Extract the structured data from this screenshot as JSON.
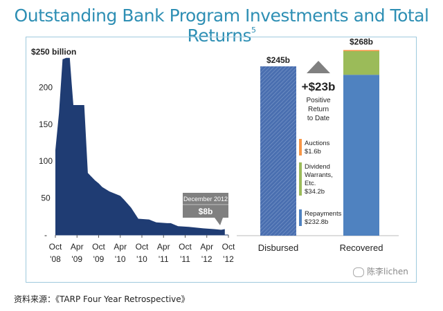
{
  "title": "Outstanding Bank Program Investments and Total Returns",
  "title_footnote": "5",
  "chart_data": [
    {
      "type": "area",
      "title": "",
      "ylabel": "$250 billion",
      "ylim": [
        0,
        250
      ],
      "y_ticks": [
        "250",
        "200",
        "150",
        "100",
        "50",
        "-"
      ],
      "x_ticks": [
        {
          "top": "Oct",
          "bottom": "'08"
        },
        {
          "top": "Apr",
          "bottom": "'09"
        },
        {
          "top": "Oct",
          "bottom": "'09"
        },
        {
          "top": "Apr",
          "bottom": "'10"
        },
        {
          "top": "Oct",
          "bottom": "'10"
        },
        {
          "top": "Apr",
          "bottom": "'11"
        },
        {
          "top": "Oct",
          "bottom": "'11"
        },
        {
          "top": "Apr",
          "bottom": "'12"
        },
        {
          "top": "Oct",
          "bottom": "'12"
        }
      ],
      "x_range": [
        0,
        48
      ],
      "points": [
        [
          0,
          115
        ],
        [
          1,
          165
        ],
        [
          2,
          238
        ],
        [
          3,
          240
        ],
        [
          4,
          240
        ],
        [
          4.5,
          207
        ],
        [
          5,
          176
        ],
        [
          8,
          176
        ],
        [
          9,
          84
        ],
        [
          11,
          74
        ],
        [
          12,
          70
        ],
        [
          13,
          65
        ],
        [
          15,
          59
        ],
        [
          18,
          53
        ],
        [
          19,
          48
        ],
        [
          21,
          37
        ],
        [
          23,
          22
        ],
        [
          26,
          21
        ],
        [
          27,
          19
        ],
        [
          28,
          17
        ],
        [
          31,
          16
        ],
        [
          32,
          16
        ],
        [
          34,
          12
        ],
        [
          37,
          11
        ],
        [
          41,
          9
        ],
        [
          44,
          8
        ],
        [
          46,
          7
        ],
        [
          47,
          8
        ]
      ],
      "annotation": {
        "label": "December 2012",
        "value": "$8b"
      },
      "color": "#1f3c73"
    },
    {
      "type": "bar",
      "categories": [
        "Disbursed",
        "Recovered"
      ],
      "ylim": [
        0,
        280
      ],
      "disbursed": {
        "value": 245,
        "label": "$245b",
        "color": "#4a6fb0"
      },
      "recovered": {
        "total_label": "$268b",
        "stack": [
          {
            "name": "Repayments",
            "value": 232.8,
            "label": "Repayments\n$232.8b",
            "color": "#4f82c0"
          },
          {
            "name": "Dividend Warrants, Etc.",
            "value": 34.2,
            "label": "Dividend\nWarrants,\nEtc.\n$34.2b",
            "color": "#9bbb59"
          },
          {
            "name": "Auctions",
            "value": 1.6,
            "label": "Auctions\n$1.6b",
            "color": "#f79646"
          }
        ]
      },
      "return_callout": {
        "value": "+$23b",
        "lines": [
          "Positive",
          "Return",
          "to Date"
        ]
      }
    }
  ],
  "source_note": "资料来源：《TARP Four Year Retrospective》",
  "watermark": "陈李lichen"
}
